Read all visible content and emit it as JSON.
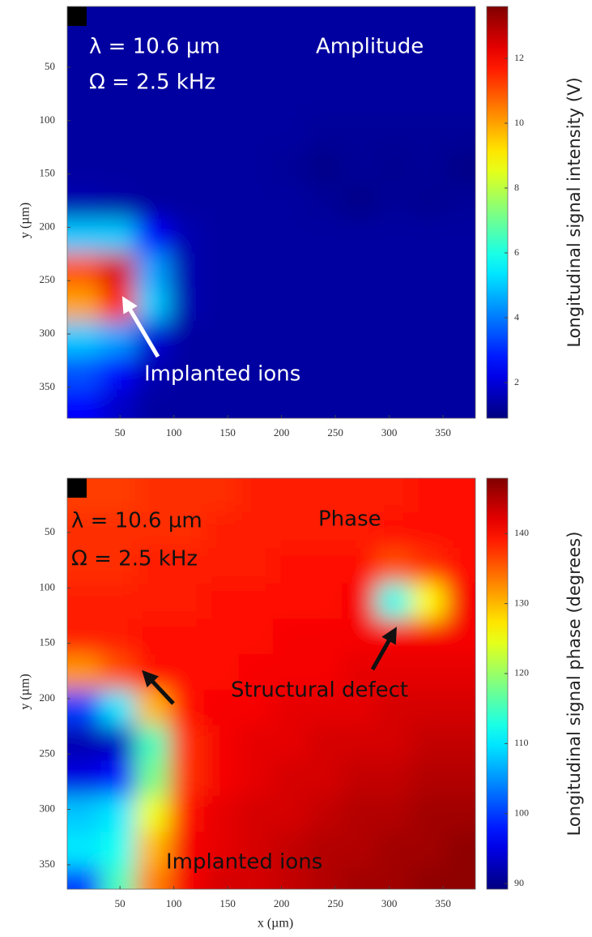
{
  "chart_data": [
    {
      "type": "heatmap",
      "colormap": "jet",
      "annotations": [
        "λ = 10.6 µm",
        "Ω = 2.5 kHz",
        "Amplitude",
        "Implanted ions"
      ],
      "annotation_color": "#ffffff",
      "ylabel": "y (µm)",
      "xlim": [
        1,
        380
      ],
      "ylim": [
        379,
        -7
      ],
      "xticks": [
        50,
        100,
        150,
        200,
        250,
        300,
        350
      ],
      "yticks": [
        50,
        100,
        150,
        200,
        250,
        300,
        350
      ],
      "colorbar": {
        "label": "Longitudinal signal intensity (V)",
        "lim": [
          0.9,
          13.6
        ],
        "ticks": [
          2,
          4,
          6,
          8,
          10,
          12
        ]
      },
      "x": [
        16,
        48,
        80,
        112,
        144,
        176,
        208,
        240,
        272,
        304,
        336,
        368
      ],
      "y": [
        16,
        48,
        80,
        112,
        144,
        176,
        208,
        240,
        272,
        304,
        336,
        368
      ],
      "z": [
        [
          1.3,
          1.3,
          1.3,
          1.3,
          1.3,
          1.3,
          1.3,
          1.3,
          1.3,
          1.3,
          1.3,
          1.3
        ],
        [
          1.3,
          1.3,
          1.3,
          1.3,
          1.3,
          1.3,
          1.3,
          1.3,
          1.3,
          1.3,
          1.3,
          1.3
        ],
        [
          1.3,
          1.3,
          1.3,
          1.3,
          1.3,
          1.3,
          1.3,
          1.3,
          1.3,
          1.3,
          1.3,
          1.3
        ],
        [
          1.3,
          1.3,
          1.3,
          1.3,
          1.3,
          1.3,
          1.3,
          1.2,
          1.2,
          1.2,
          1.2,
          1.2
        ],
        [
          1.3,
          1.3,
          1.3,
          1.3,
          1.3,
          1.3,
          1.2,
          1.0,
          1.2,
          1.1,
          1.2,
          1.0
        ],
        [
          1.5,
          1.4,
          1.3,
          1.3,
          1.3,
          1.3,
          1.3,
          1.2,
          1.0,
          1.2,
          1.1,
          1.2
        ],
        [
          5,
          5,
          2.5,
          1.5,
          1.3,
          1.3,
          1.3,
          1.3,
          1.3,
          1.3,
          1.3,
          1.3
        ],
        [
          11,
          12.5,
          4.5,
          1.5,
          1.3,
          1.3,
          1.3,
          1.3,
          1.3,
          1.3,
          1.3,
          1.3
        ],
        [
          10,
          12,
          5,
          1.5,
          1.3,
          1.3,
          1.3,
          1.3,
          1.3,
          1.3,
          1.3,
          1.3
        ],
        [
          5,
          4.5,
          2,
          1.3,
          1.3,
          1.3,
          1.3,
          1.3,
          1.3,
          1.3,
          1.3,
          1.3
        ],
        [
          3.5,
          2.5,
          1.5,
          1.3,
          1.3,
          1.3,
          1.3,
          1.3,
          1.3,
          1.3,
          1.3,
          1.3
        ],
        [
          2.5,
          1.8,
          1.3,
          1.3,
          1.3,
          1.3,
          1.3,
          1.3,
          1.3,
          1.3,
          1.3,
          1.3
        ]
      ]
    },
    {
      "type": "heatmap",
      "colormap": "jet",
      "annotations": [
        "λ = 10.6 µm",
        "Ω = 2.5 kHz",
        "Phase",
        "Structural defect",
        "Implanted ions"
      ],
      "annotation_color": "#111111",
      "xlabel": "x (µm)",
      "ylabel": "y (µm)",
      "xlim": [
        1,
        380
      ],
      "ylim": [
        372,
        1
      ],
      "xticks": [
        50,
        100,
        150,
        200,
        250,
        300,
        350
      ],
      "yticks": [
        50,
        100,
        150,
        200,
        250,
        300,
        350
      ],
      "colorbar": {
        "label": "Longitudinal signal phase (degrees)",
        "lim": [
          89.2,
          147.9
        ],
        "ticks": [
          90,
          100,
          110,
          120,
          130,
          140
        ]
      },
      "x": [
        16,
        48,
        80,
        112,
        144,
        176,
        208,
        240,
        272,
        304,
        336,
        368
      ],
      "y": [
        16,
        48,
        80,
        112,
        144,
        176,
        208,
        240,
        272,
        304,
        336,
        368
      ],
      "z": [
        [
          137,
          137,
          138,
          138,
          138,
          139,
          139,
          139,
          139,
          139,
          140,
          140
        ],
        [
          138,
          138,
          138,
          138,
          139,
          139,
          139,
          139,
          139,
          140,
          140,
          140
        ],
        [
          138,
          138,
          139,
          139,
          139,
          139,
          140,
          140,
          140,
          136,
          138,
          140
        ],
        [
          139,
          139,
          139,
          139,
          140,
          140,
          140,
          140,
          141,
          112,
          126,
          141
        ],
        [
          139,
          139,
          140,
          140,
          140,
          140,
          141,
          141,
          141,
          141,
          141,
          141
        ],
        [
          132,
          136,
          140,
          140,
          140,
          141,
          141,
          141,
          142,
          142,
          142,
          142
        ],
        [
          100,
          110,
          130,
          140,
          141,
          141,
          142,
          142,
          142,
          143,
          143,
          143
        ],
        [
          92,
          93,
          115,
          138,
          141,
          142,
          142,
          143,
          143,
          143,
          144,
          144
        ],
        [
          95,
          97,
          118,
          138,
          141,
          142,
          143,
          143,
          144,
          144,
          145,
          145
        ],
        [
          108,
          110,
          125,
          140,
          142,
          143,
          143,
          144,
          145,
          145,
          146,
          146
        ],
        [
          110,
          112,
          130,
          141,
          142,
          143,
          144,
          145,
          145,
          146,
          146,
          147
        ],
        [
          100,
          115,
          133,
          141,
          143,
          143,
          144,
          145,
          146,
          146,
          147,
          147
        ]
      ]
    }
  ]
}
